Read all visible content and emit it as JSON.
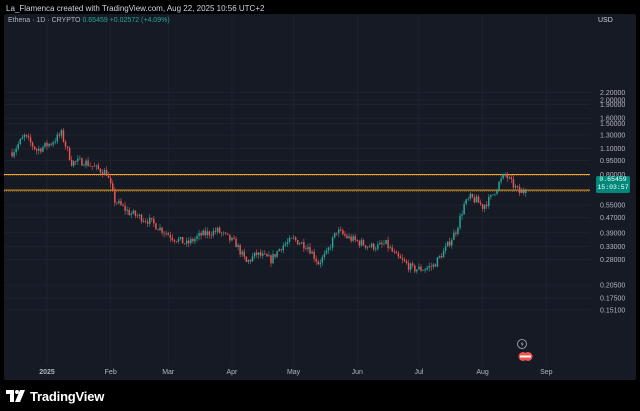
{
  "header": {
    "text": "La_Flamenca created with TradingView.com, Aug 22, 2025 10:56 UTC+2"
  },
  "legend": {
    "symbol": "Ethena · 1D · CRYPTO",
    "price": "0.65459",
    "change": "+0.02572 (+4.09%)"
  },
  "currency": "USD",
  "price_badge": {
    "price": "0.65459",
    "countdown": "15:03:57"
  },
  "footer": {
    "brand": "TradingView",
    "logo": "tradingview-logo"
  },
  "colors": {
    "up": "#26a69a",
    "down": "#ef5350",
    "level": "#f5a623",
    "background": "#161a25"
  },
  "chart_data": {
    "type": "candlestick",
    "scale": "log",
    "grid": true,
    "y_axis_ticks": [
      2.2,
      2.0,
      1.9,
      1.6,
      1.5,
      1.3,
      1.1,
      0.95,
      0.8,
      0.65,
      0.55,
      0.47,
      0.39,
      0.33,
      0.28,
      0.205,
      0.175,
      0.151
    ],
    "y_axis_labels": [
      "2.20000",
      "2.00000",
      "1.90000",
      "1.60000",
      "1.50000",
      "1.30000",
      "1.10000",
      "0.95000",
      "0.80000",
      "0.65459",
      "0.55000",
      "0.47000",
      "0.39000",
      "0.33000",
      "0.28000",
      "0.20500",
      "0.17500",
      "0.15100"
    ],
    "x_axis_labels": [
      "2025",
      "Feb",
      "Mar",
      "Apr",
      "May",
      "Jun",
      "Jul",
      "Aug",
      "Sep"
    ],
    "x_axis_dates": [
      "2025-01-01",
      "2025-02-01",
      "2025-03-01",
      "2025-04-01",
      "2025-05-01",
      "2025-06-01",
      "2025-07-01",
      "2025-08-01",
      "2025-09-01"
    ],
    "horizontal_levels": [
      0.8,
      0.66
    ],
    "last_price": 0.65459,
    "anchors": [
      [
        "2024-12-15",
        1.05
      ],
      [
        "2024-12-21",
        1.28
      ],
      [
        "2024-12-27",
        1.08
      ],
      [
        "2025-01-03",
        1.18
      ],
      [
        "2025-01-08",
        1.32
      ],
      [
        "2025-01-13",
        0.93
      ],
      [
        "2025-01-19",
        0.94
      ],
      [
        "2025-01-25",
        0.86
      ],
      [
        "2025-01-30",
        0.82
      ],
      [
        "2025-02-03",
        0.58
      ],
      [
        "2025-02-10",
        0.5
      ],
      [
        "2025-02-20",
        0.45
      ],
      [
        "2025-03-03",
        0.37
      ],
      [
        "2025-03-10",
        0.34
      ],
      [
        "2025-03-17",
        0.38
      ],
      [
        "2025-03-25",
        0.4
      ],
      [
        "2025-04-03",
        0.34
      ],
      [
        "2025-04-08",
        0.27
      ],
      [
        "2025-04-13",
        0.3
      ],
      [
        "2025-04-20",
        0.28
      ],
      [
        "2025-04-25",
        0.33
      ],
      [
        "2025-05-01",
        0.36
      ],
      [
        "2025-05-08",
        0.33
      ],
      [
        "2025-05-13",
        0.27
      ],
      [
        "2025-05-17",
        0.3
      ],
      [
        "2025-05-22",
        0.4
      ],
      [
        "2025-05-27",
        0.37
      ],
      [
        "2025-06-01",
        0.35
      ],
      [
        "2025-06-07",
        0.33
      ],
      [
        "2025-06-11",
        0.33
      ],
      [
        "2025-06-15",
        0.34
      ],
      [
        "2025-06-20",
        0.29
      ],
      [
        "2025-06-24",
        0.27
      ],
      [
        "2025-06-28",
        0.25
      ],
      [
        "2025-07-03",
        0.25
      ],
      [
        "2025-07-08",
        0.26
      ],
      [
        "2025-07-14",
        0.32
      ],
      [
        "2025-07-19",
        0.4
      ],
      [
        "2025-07-23",
        0.55
      ],
      [
        "2025-07-26",
        0.6
      ],
      [
        "2025-07-29",
        0.58
      ],
      [
        "2025-08-01",
        0.54
      ],
      [
        "2025-08-05",
        0.6
      ],
      [
        "2025-08-09",
        0.72
      ],
      [
        "2025-08-12",
        0.8
      ],
      [
        "2025-08-15",
        0.72
      ],
      [
        "2025-08-19",
        0.64
      ],
      [
        "2025-08-22",
        0.655
      ]
    ]
  }
}
